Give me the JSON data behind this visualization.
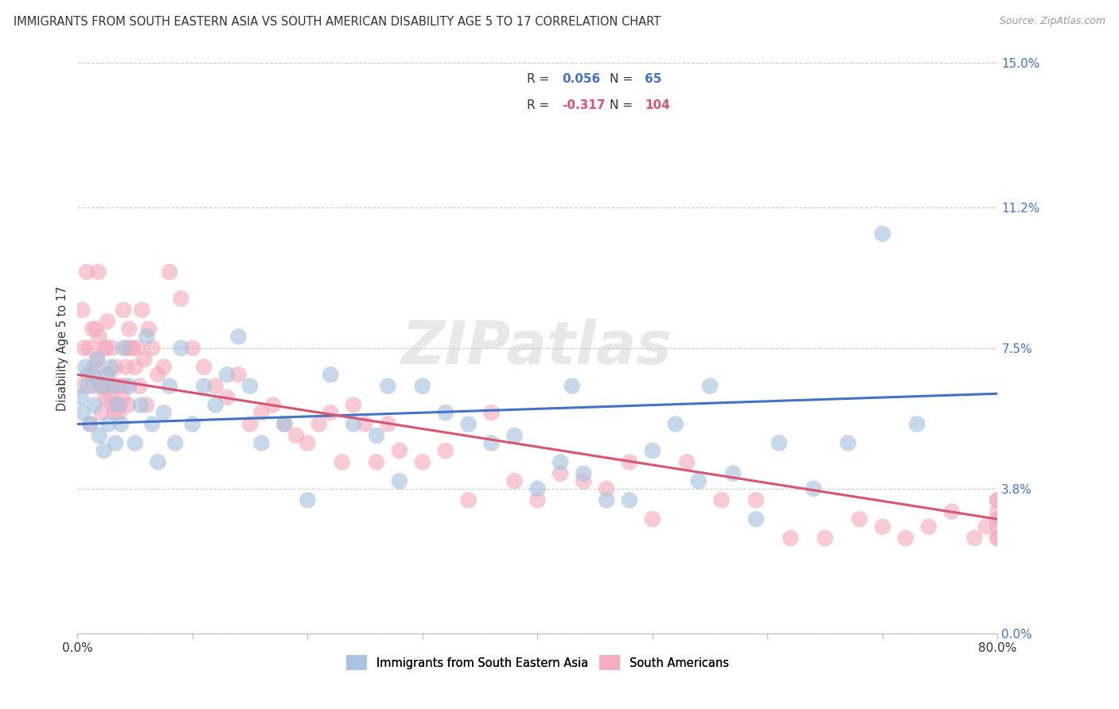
{
  "title": "IMMIGRANTS FROM SOUTH EASTERN ASIA VS SOUTH AMERICAN DISABILITY AGE 5 TO 17 CORRELATION CHART",
  "source": "Source: ZipAtlas.com",
  "ylabel": "Disability Age 5 to 17",
  "legend_label_blue": "Immigrants from South Eastern Asia",
  "legend_label_pink": "South Americans",
  "R_blue": 0.056,
  "N_blue": 65,
  "R_pink": -0.317,
  "N_pink": 104,
  "blue_scatter_color": "#aac4e0",
  "pink_scatter_color": "#f4aec0",
  "blue_line_color": "#4472c4",
  "pink_line_color": "#d9546e",
  "xlim": [
    0.0,
    80.0
  ],
  "ylim": [
    0.0,
    15.0
  ],
  "ytick_values": [
    0.0,
    3.8,
    7.5,
    11.2,
    15.0
  ],
  "ytick_labels": [
    "0.0%",
    "3.8%",
    "7.5%",
    "11.2%",
    "15.0%"
  ],
  "xtick_values": [
    0,
    10,
    20,
    30,
    40,
    50,
    60,
    70,
    80
  ],
  "xtick_labels": [
    "0.0%",
    "",
    "",
    "",
    "",
    "",
    "",
    "",
    "80.0%"
  ],
  "watermark": "ZIPatlas",
  "blue_x": [
    0.3,
    0.5,
    0.7,
    0.9,
    1.1,
    1.3,
    1.5,
    1.7,
    1.9,
    2.1,
    2.3,
    2.5,
    2.7,
    2.9,
    3.1,
    3.3,
    3.5,
    3.8,
    4.0,
    4.5,
    5.0,
    5.5,
    6.0,
    6.5,
    7.0,
    7.5,
    8.0,
    8.5,
    9.0,
    10.0,
    11.0,
    12.0,
    13.0,
    14.0,
    15.0,
    16.0,
    18.0,
    20.0,
    22.0,
    24.0,
    26.0,
    27.0,
    28.0,
    30.0,
    32.0,
    34.0,
    36.0,
    38.0,
    40.0,
    42.0,
    43.0,
    44.0,
    46.0,
    48.0,
    50.0,
    52.0,
    54.0,
    55.0,
    57.0,
    59.0,
    61.0,
    64.0,
    67.0,
    70.0,
    73.0
  ],
  "blue_y": [
    6.2,
    5.8,
    7.0,
    6.5,
    5.5,
    6.8,
    6.0,
    7.2,
    5.2,
    6.5,
    4.8,
    6.8,
    5.5,
    7.0,
    6.5,
    5.0,
    6.0,
    5.5,
    7.5,
    6.5,
    5.0,
    6.0,
    7.8,
    5.5,
    4.5,
    5.8,
    6.5,
    5.0,
    7.5,
    5.5,
    6.5,
    6.0,
    6.8,
    7.8,
    6.5,
    5.0,
    5.5,
    3.5,
    6.8,
    5.5,
    5.2,
    6.5,
    4.0,
    6.5,
    5.8,
    5.5,
    5.0,
    5.2,
    3.8,
    4.5,
    6.5,
    4.2,
    3.5,
    3.5,
    4.8,
    5.5,
    4.0,
    6.5,
    4.2,
    3.0,
    5.0,
    3.8,
    5.0,
    10.5,
    5.5
  ],
  "pink_x": [
    0.3,
    0.4,
    0.6,
    0.8,
    0.9,
    1.0,
    1.1,
    1.3,
    1.4,
    1.5,
    1.6,
    1.7,
    1.8,
    1.9,
    2.0,
    2.1,
    2.2,
    2.3,
    2.4,
    2.5,
    2.6,
    2.7,
    2.8,
    2.9,
    3.0,
    3.1,
    3.2,
    3.3,
    3.4,
    3.5,
    3.6,
    3.7,
    3.8,
    3.9,
    4.0,
    4.1,
    4.2,
    4.3,
    4.4,
    4.5,
    4.6,
    4.8,
    5.0,
    5.2,
    5.4,
    5.6,
    5.8,
    6.0,
    6.2,
    6.5,
    7.0,
    7.5,
    8.0,
    9.0,
    10.0,
    11.0,
    12.0,
    13.0,
    14.0,
    15.0,
    16.0,
    17.0,
    18.0,
    19.0,
    20.0,
    21.0,
    22.0,
    23.0,
    24.0,
    25.0,
    26.0,
    27.0,
    28.0,
    30.0,
    32.0,
    34.0,
    36.0,
    38.0,
    40.0,
    42.0,
    44.0,
    46.0,
    48.0,
    50.0,
    53.0,
    56.0,
    59.0,
    62.0,
    65.0,
    68.0,
    70.0,
    72.0,
    74.0,
    76.0,
    78.0,
    79.0,
    80.0,
    80.0,
    80.0,
    80.0,
    80.0,
    80.0,
    80.0,
    80.0
  ],
  "pink_y": [
    6.5,
    8.5,
    7.5,
    9.5,
    6.8,
    7.5,
    5.5,
    8.0,
    6.5,
    7.0,
    8.0,
    7.2,
    9.5,
    7.8,
    6.5,
    5.8,
    6.5,
    7.5,
    6.2,
    7.5,
    8.2,
    6.8,
    6.2,
    6.5,
    7.5,
    6.0,
    5.8,
    7.0,
    6.5,
    6.0,
    5.8,
    6.0,
    6.5,
    6.2,
    8.5,
    6.5,
    7.0,
    7.5,
    6.0,
    8.0,
    7.5,
    7.5,
    7.0,
    7.5,
    6.5,
    8.5,
    7.2,
    6.0,
    8.0,
    7.5,
    6.8,
    7.0,
    9.5,
    8.8,
    7.5,
    7.0,
    6.5,
    6.2,
    6.8,
    5.5,
    5.8,
    6.0,
    5.5,
    5.2,
    5.0,
    5.5,
    5.8,
    4.5,
    6.0,
    5.5,
    4.5,
    5.5,
    4.8,
    4.5,
    4.8,
    3.5,
    5.8,
    4.0,
    3.5,
    4.2,
    4.0,
    3.8,
    4.5,
    3.0,
    4.5,
    3.5,
    3.5,
    2.5,
    2.5,
    3.0,
    2.8,
    2.5,
    2.8,
    3.2,
    2.5,
    2.8,
    3.0,
    3.5,
    2.5,
    3.2,
    2.8,
    3.5,
    2.5,
    3.0
  ],
  "blue_line_x": [
    0,
    80
  ],
  "blue_line_y": [
    5.5,
    6.3
  ],
  "pink_line_x": [
    0,
    80
  ],
  "pink_line_y": [
    6.8,
    3.0
  ]
}
